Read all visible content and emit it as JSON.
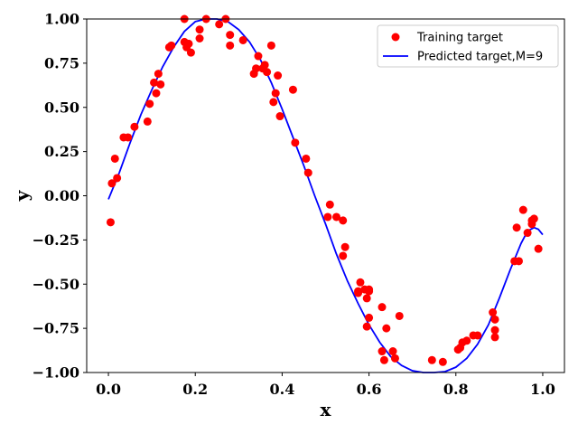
{
  "chart_data": {
    "type": "scatter",
    "xlabel": "x",
    "ylabel": "y",
    "xlim": [
      -0.05,
      1.05
    ],
    "ylim": [
      -1.0,
      1.0
    ],
    "xticks": [
      0.0,
      0.2,
      0.4,
      0.6,
      0.8,
      1.0
    ],
    "xtick_labels": [
      "0.0",
      "0.2",
      "0.4",
      "0.6",
      "0.8",
      "1.0"
    ],
    "yticks": [
      -1.0,
      -0.75,
      -0.5,
      -0.25,
      0.0,
      0.25,
      0.5,
      0.75,
      1.0
    ],
    "ytick_labels": [
      "−1.00",
      "−0.75",
      "−0.50",
      "−0.25",
      "0.00",
      "0.25",
      "0.50",
      "0.75",
      "1.00"
    ],
    "grid": false,
    "legend_position": "top-right",
    "legend": {
      "training_label": "Training target",
      "predicted_label": "Predicted target,M=9"
    },
    "colors": {
      "training": "#ff0000",
      "predicted": "#0000ff"
    },
    "series": [
      {
        "name": "Training target",
        "kind": "scatter",
        "points": [
          [
            0.005,
            -0.15
          ],
          [
            0.008,
            0.07
          ],
          [
            0.015,
            0.21
          ],
          [
            0.02,
            0.1
          ],
          [
            0.035,
            0.33
          ],
          [
            0.045,
            0.33
          ],
          [
            0.06,
            0.39
          ],
          [
            0.09,
            0.42
          ],
          [
            0.095,
            0.52
          ],
          [
            0.105,
            0.64
          ],
          [
            0.11,
            0.58
          ],
          [
            0.115,
            0.69
          ],
          [
            0.12,
            0.63
          ],
          [
            0.14,
            0.84
          ],
          [
            0.145,
            0.85
          ],
          [
            0.175,
            1.0
          ],
          [
            0.175,
            0.87
          ],
          [
            0.18,
            0.84
          ],
          [
            0.185,
            0.86
          ],
          [
            0.19,
            0.81
          ],
          [
            0.21,
            0.94
          ],
          [
            0.21,
            0.89
          ],
          [
            0.225,
            1.0
          ],
          [
            0.255,
            0.97
          ],
          [
            0.27,
            1.0
          ],
          [
            0.28,
            0.91
          ],
          [
            0.28,
            0.85
          ],
          [
            0.31,
            0.88
          ],
          [
            0.335,
            0.69
          ],
          [
            0.34,
            0.72
          ],
          [
            0.345,
            0.79
          ],
          [
            0.355,
            0.72
          ],
          [
            0.36,
            0.74
          ],
          [
            0.365,
            0.7
          ],
          [
            0.375,
            0.85
          ],
          [
            0.38,
            0.53
          ],
          [
            0.385,
            0.58
          ],
          [
            0.39,
            0.68
          ],
          [
            0.395,
            0.45
          ],
          [
            0.425,
            0.6
          ],
          [
            0.43,
            0.3
          ],
          [
            0.455,
            0.21
          ],
          [
            0.46,
            0.13
          ],
          [
            0.505,
            -0.12
          ],
          [
            0.51,
            -0.05
          ],
          [
            0.525,
            -0.12
          ],
          [
            0.54,
            -0.34
          ],
          [
            0.54,
            -0.14
          ],
          [
            0.545,
            -0.29
          ],
          [
            0.575,
            -0.55
          ],
          [
            0.575,
            -0.54
          ],
          [
            0.58,
            -0.49
          ],
          [
            0.59,
            -0.53
          ],
          [
            0.595,
            -0.58
          ],
          [
            0.595,
            -0.74
          ],
          [
            0.6,
            -0.69
          ],
          [
            0.6,
            -0.54
          ],
          [
            0.6,
            -0.53
          ],
          [
            0.63,
            -0.88
          ],
          [
            0.63,
            -0.63
          ],
          [
            0.635,
            -0.93
          ],
          [
            0.64,
            -0.75
          ],
          [
            0.655,
            -0.88
          ],
          [
            0.66,
            -0.92
          ],
          [
            0.67,
            -0.68
          ],
          [
            0.745,
            -0.93
          ],
          [
            0.77,
            -0.94
          ],
          [
            0.805,
            -0.87
          ],
          [
            0.81,
            -0.86
          ],
          [
            0.815,
            -0.83
          ],
          [
            0.825,
            -0.82
          ],
          [
            0.84,
            -0.79
          ],
          [
            0.85,
            -0.79
          ],
          [
            0.885,
            -0.66
          ],
          [
            0.89,
            -0.7
          ],
          [
            0.89,
            -0.76
          ],
          [
            0.89,
            -0.8
          ],
          [
            0.935,
            -0.37
          ],
          [
            0.94,
            -0.18
          ],
          [
            0.945,
            -0.37
          ],
          [
            0.955,
            -0.08
          ],
          [
            0.965,
            -0.21
          ],
          [
            0.975,
            -0.16
          ],
          [
            0.975,
            -0.14
          ],
          [
            0.98,
            -0.13
          ],
          [
            0.99,
            -0.3
          ]
        ]
      },
      {
        "name": "Predicted target,M=9",
        "kind": "line",
        "points": [
          [
            0.0,
            -0.02
          ],
          [
            0.025,
            0.13
          ],
          [
            0.05,
            0.3
          ],
          [
            0.075,
            0.46
          ],
          [
            0.1,
            0.6
          ],
          [
            0.125,
            0.73
          ],
          [
            0.15,
            0.84
          ],
          [
            0.175,
            0.93
          ],
          [
            0.2,
            0.985
          ],
          [
            0.225,
            1.0
          ],
          [
            0.25,
            1.0
          ],
          [
            0.275,
            0.985
          ],
          [
            0.3,
            0.94
          ],
          [
            0.325,
            0.87
          ],
          [
            0.35,
            0.77
          ],
          [
            0.375,
            0.64
          ],
          [
            0.4,
            0.49
          ],
          [
            0.425,
            0.33
          ],
          [
            0.45,
            0.17
          ],
          [
            0.475,
            0.0
          ],
          [
            0.5,
            -0.16
          ],
          [
            0.525,
            -0.33
          ],
          [
            0.55,
            -0.48
          ],
          [
            0.575,
            -0.61
          ],
          [
            0.6,
            -0.73
          ],
          [
            0.625,
            -0.83
          ],
          [
            0.65,
            -0.91
          ],
          [
            0.675,
            -0.96
          ],
          [
            0.7,
            -0.99
          ],
          [
            0.725,
            -1.0
          ],
          [
            0.75,
            -1.0
          ],
          [
            0.775,
            -0.995
          ],
          [
            0.8,
            -0.97
          ],
          [
            0.825,
            -0.92
          ],
          [
            0.85,
            -0.84
          ],
          [
            0.875,
            -0.73
          ],
          [
            0.9,
            -0.58
          ],
          [
            0.925,
            -0.42
          ],
          [
            0.95,
            -0.27
          ],
          [
            0.965,
            -0.2
          ],
          [
            0.98,
            -0.18
          ],
          [
            0.99,
            -0.19
          ],
          [
            1.0,
            -0.22
          ]
        ]
      }
    ]
  }
}
